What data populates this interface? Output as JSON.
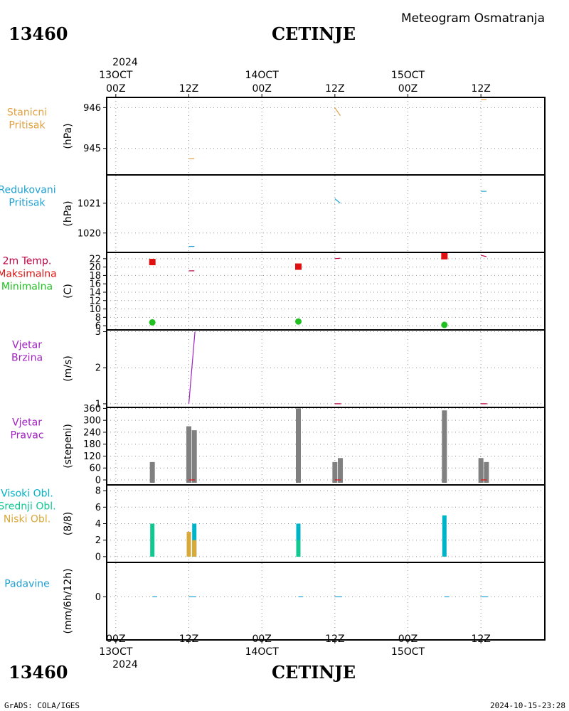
{
  "header": {
    "station_id": "13460",
    "station_name": "CETINJE",
    "title": "Meteogram Osmatranja"
  },
  "footer": {
    "credit": "GrADS: COLA/IGES",
    "timestamp": "2024-10-15-23:28"
  },
  "time_axis": {
    "year": "2024",
    "hour_labels": [
      "00Z",
      "12Z",
      "00Z",
      "12Z",
      "00Z",
      "12Z"
    ],
    "day_labels": [
      "13OCT",
      "14OCT",
      "15OCT"
    ],
    "tick_hours": [
      0,
      12,
      24,
      36,
      48,
      60
    ],
    "range_hours": [
      -1.5,
      70.5
    ]
  },
  "colors": {
    "stanicni": "#e0a040",
    "redukovani": "#1ea0d2",
    "temp_label": "#c00040",
    "maks": "#e01010",
    "mini": "#20c020",
    "vjetar": "#a020c0",
    "pravac_bars": "#808080",
    "visoki": "#00b4c8",
    "srednji": "#10c890",
    "niski": "#d8a838",
    "padavine": "#1ea0d2",
    "grid": "#909090"
  },
  "chart_data": [
    {
      "type": "line",
      "id": "stanicni",
      "label_lines": [
        "Stanicni",
        "Pritisak"
      ],
      "ylabel": "(hPa)",
      "yticks": [
        945,
        946
      ],
      "ylim": [
        944.35,
        946.25
      ],
      "series": [
        {
          "color_key": "stanicni",
          "points": [
            [
              12,
              944.75
            ],
            [
              12.9,
              944.75
            ]
          ]
        },
        {
          "color_key": "stanicni",
          "points": [
            [
              36,
              946.0
            ],
            [
              36.9,
              945.8
            ]
          ]
        },
        {
          "color_key": "stanicni",
          "points": [
            [
              60,
              946.2
            ],
            [
              60.9,
              946.2
            ]
          ]
        }
      ]
    },
    {
      "type": "line",
      "id": "redukovani",
      "label_lines": [
        "Redukovani",
        "Pritisak"
      ],
      "ylabel": "(hPa)",
      "yticks": [
        1020,
        1021
      ],
      "ylim": [
        1019.35,
        1021.95
      ],
      "series": [
        {
          "color_key": "redukovani",
          "points": [
            [
              12,
              1019.55
            ],
            [
              12.9,
              1019.55
            ]
          ]
        },
        {
          "color_key": "redukovani",
          "points": [
            [
              36,
              1021.15
            ],
            [
              36.9,
              1021.0
            ]
          ]
        },
        {
          "color_key": "redukovani",
          "points": [
            [
              60,
              1021.4
            ],
            [
              60.9,
              1021.4
            ]
          ]
        }
      ]
    },
    {
      "type": "scatter",
      "id": "temperatura",
      "label_lines": [
        "2m Temp.",
        "Maksimalna",
        "Minimalna"
      ],
      "ylabel": "(C)",
      "yticks": [
        6,
        8,
        10,
        12,
        14,
        16,
        18,
        20,
        22
      ],
      "ylim": [
        5.0,
        23.5
      ],
      "series": [
        {
          "name": "Maksimalna",
          "color_key": "maks",
          "marker": "square",
          "points": [
            [
              6,
              21.2
            ],
            [
              30,
              20.1
            ],
            [
              54,
              22.6
            ]
          ]
        },
        {
          "name": "Minimalna",
          "color_key": "mini",
          "marker": "circle",
          "points": [
            [
              6,
              6.8
            ],
            [
              30,
              7.0
            ],
            [
              54,
              6.2
            ]
          ]
        }
      ],
      "lines": [
        {
          "color_key": "temp_label",
          "points": [
            [
              12,
              19.1
            ],
            [
              12.9,
              19.1
            ]
          ]
        },
        {
          "color_key": "temp_label",
          "points": [
            [
              36,
              22.0
            ],
            [
              36.9,
              22.1
            ]
          ]
        },
        {
          "color_key": "temp_label",
          "points": [
            [
              60,
              22.8
            ],
            [
              60.9,
              22.5
            ]
          ]
        }
      ]
    },
    {
      "type": "line",
      "id": "brzina",
      "label_lines": [
        "Vjetar",
        "Brzina"
      ],
      "ylabel": "(m/s)",
      "yticks": [
        1,
        2,
        3
      ],
      "ylim": [
        0.9,
        3.05
      ],
      "series": [
        {
          "color_key": "vjetar",
          "points": [
            [
              12,
              1.0
            ],
            [
              13,
              3.0
            ]
          ]
        },
        {
          "color_key": "temp_label",
          "points": [
            [
              36,
              1.0
            ],
            [
              37,
              1.0
            ]
          ]
        },
        {
          "color_key": "temp_label",
          "points": [
            [
              60,
              1.0
            ],
            [
              61,
              1.0
            ]
          ]
        }
      ]
    },
    {
      "type": "bar",
      "id": "pravac",
      "label_lines": [
        "Vjetar",
        "Pravac"
      ],
      "ylabel": "(stepeni)",
      "yticks": [
        0,
        60,
        120,
        180,
        240,
        300,
        360
      ],
      "ytick_labels": [
        "0",
        "60",
        "120",
        "180",
        "240",
        "300",
        "360"
      ],
      "ylim": [
        -25,
        365
      ],
      "series": [
        {
          "color_key": "pravac_bars",
          "points": [
            [
              6,
              90
            ],
            [
              12,
              270
            ],
            [
              12.9,
              250
            ],
            [
              30,
              360
            ],
            [
              36,
              90
            ],
            [
              36.9,
              110
            ],
            [
              54,
              350
            ],
            [
              60,
              110
            ],
            [
              60.9,
              90
            ]
          ]
        }
      ],
      "lines": [
        {
          "color_key": "maks",
          "points": [
            [
              12,
              0
            ],
            [
              13,
              0
            ]
          ]
        },
        {
          "color_key": "maks",
          "points": [
            [
              36,
              0
            ],
            [
              37,
              0
            ]
          ]
        },
        {
          "color_key": "maks",
          "points": [
            [
              60,
              0
            ],
            [
              61,
              0
            ]
          ]
        }
      ]
    },
    {
      "type": "bar",
      "id": "oblaci",
      "label_lines": [
        "Visoki Obl.",
        "Srednji Obl.",
        "Niski Obl."
      ],
      "label_color_keys": [
        "visoki",
        "srednji",
        "niski"
      ],
      "ylabel": "(8/8)",
      "yticks": [
        0,
        2,
        4,
        6,
        8
      ],
      "ylim": [
        -0.7,
        8.7
      ],
      "series": [
        {
          "name": "Visoki Obl.",
          "color_key": "visoki",
          "points": [
            [
              12.9,
              4
            ],
            [
              30,
              4
            ],
            [
              54,
              5
            ]
          ]
        },
        {
          "name": "Srednji Obl.",
          "color_key": "srednji",
          "points": [
            [
              6,
              4
            ],
            [
              30,
              2
            ]
          ]
        },
        {
          "name": "Niski Obl.",
          "color_key": "niski",
          "points": [
            [
              12,
              3
            ],
            [
              12.9,
              2
            ]
          ]
        }
      ]
    },
    {
      "type": "line",
      "id": "padavine",
      "label_lines": [
        "Padavine"
      ],
      "ylabel": "(mm/6h/12h)",
      "yticks": [
        0
      ],
      "ylim": [
        -5,
        4
      ],
      "series": [
        {
          "color_key": "padavine",
          "points": [
            [
              6,
              0
            ],
            [
              6.8,
              0
            ]
          ]
        },
        {
          "color_key": "padavine",
          "points": [
            [
              12,
              0
            ],
            [
              13.2,
              0
            ]
          ]
        },
        {
          "color_key": "padavine",
          "points": [
            [
              30,
              0
            ],
            [
              30.8,
              0
            ]
          ]
        },
        {
          "color_key": "padavine",
          "points": [
            [
              36,
              0
            ],
            [
              37.2,
              0
            ]
          ]
        },
        {
          "color_key": "padavine",
          "points": [
            [
              54,
              0
            ],
            [
              54.8,
              0
            ]
          ]
        },
        {
          "color_key": "padavine",
          "points": [
            [
              60,
              0
            ],
            [
              61.2,
              0
            ]
          ]
        }
      ]
    }
  ]
}
